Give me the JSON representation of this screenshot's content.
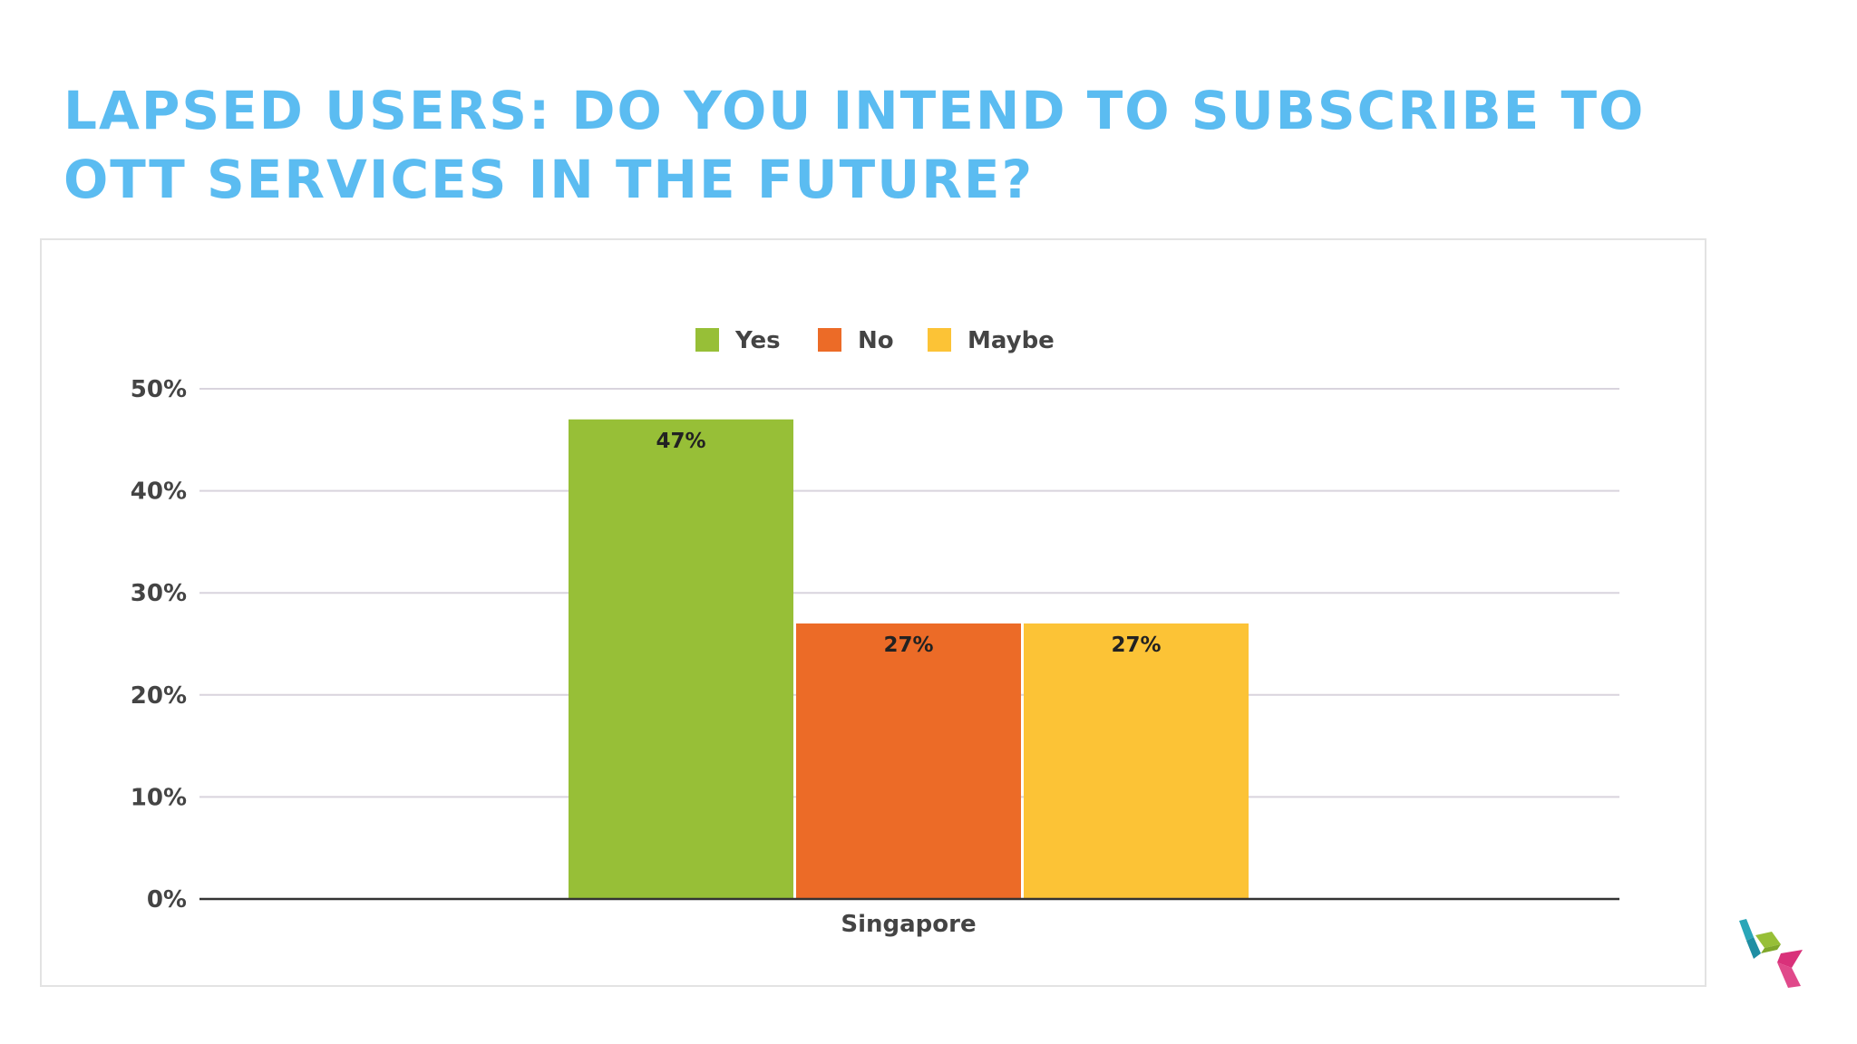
{
  "page": {
    "title_lines": [
      "LAPSED USERS: DO YOU INTEND TO SUBSCRIBE TO",
      "OTT SERVICES IN THE FUTURE?"
    ]
  },
  "colors": {
    "title": "#5bbcf1",
    "yes": "#97bf37",
    "no": "#ec6b27",
    "maybe": "#fcc336",
    "gridline": "#d9d4dd",
    "baseline": "#333333"
  },
  "chart_data": {
    "type": "bar",
    "categories": [
      "Singapore"
    ],
    "series": [
      {
        "name": "Yes",
        "values": [
          47
        ],
        "label": "47%",
        "color": "#97bf37"
      },
      {
        "name": "No",
        "values": [
          27
        ],
        "label": "27%",
        "color": "#ec6b27"
      },
      {
        "name": "Maybe",
        "values": [
          27
        ],
        "label": "27%",
        "color": "#fcc336"
      }
    ],
    "ylim": [
      0,
      50
    ],
    "yticks": [
      0,
      10,
      20,
      30,
      40,
      50
    ],
    "ytick_labels": [
      "0%",
      "10%",
      "20%",
      "30%",
      "40%",
      "50%"
    ],
    "grid": true,
    "legend_position": "top-center"
  },
  "logo": {
    "icon": "cube-logo-icon",
    "colors": [
      "#2aa6b8",
      "#97bf37",
      "#d9317a"
    ]
  }
}
